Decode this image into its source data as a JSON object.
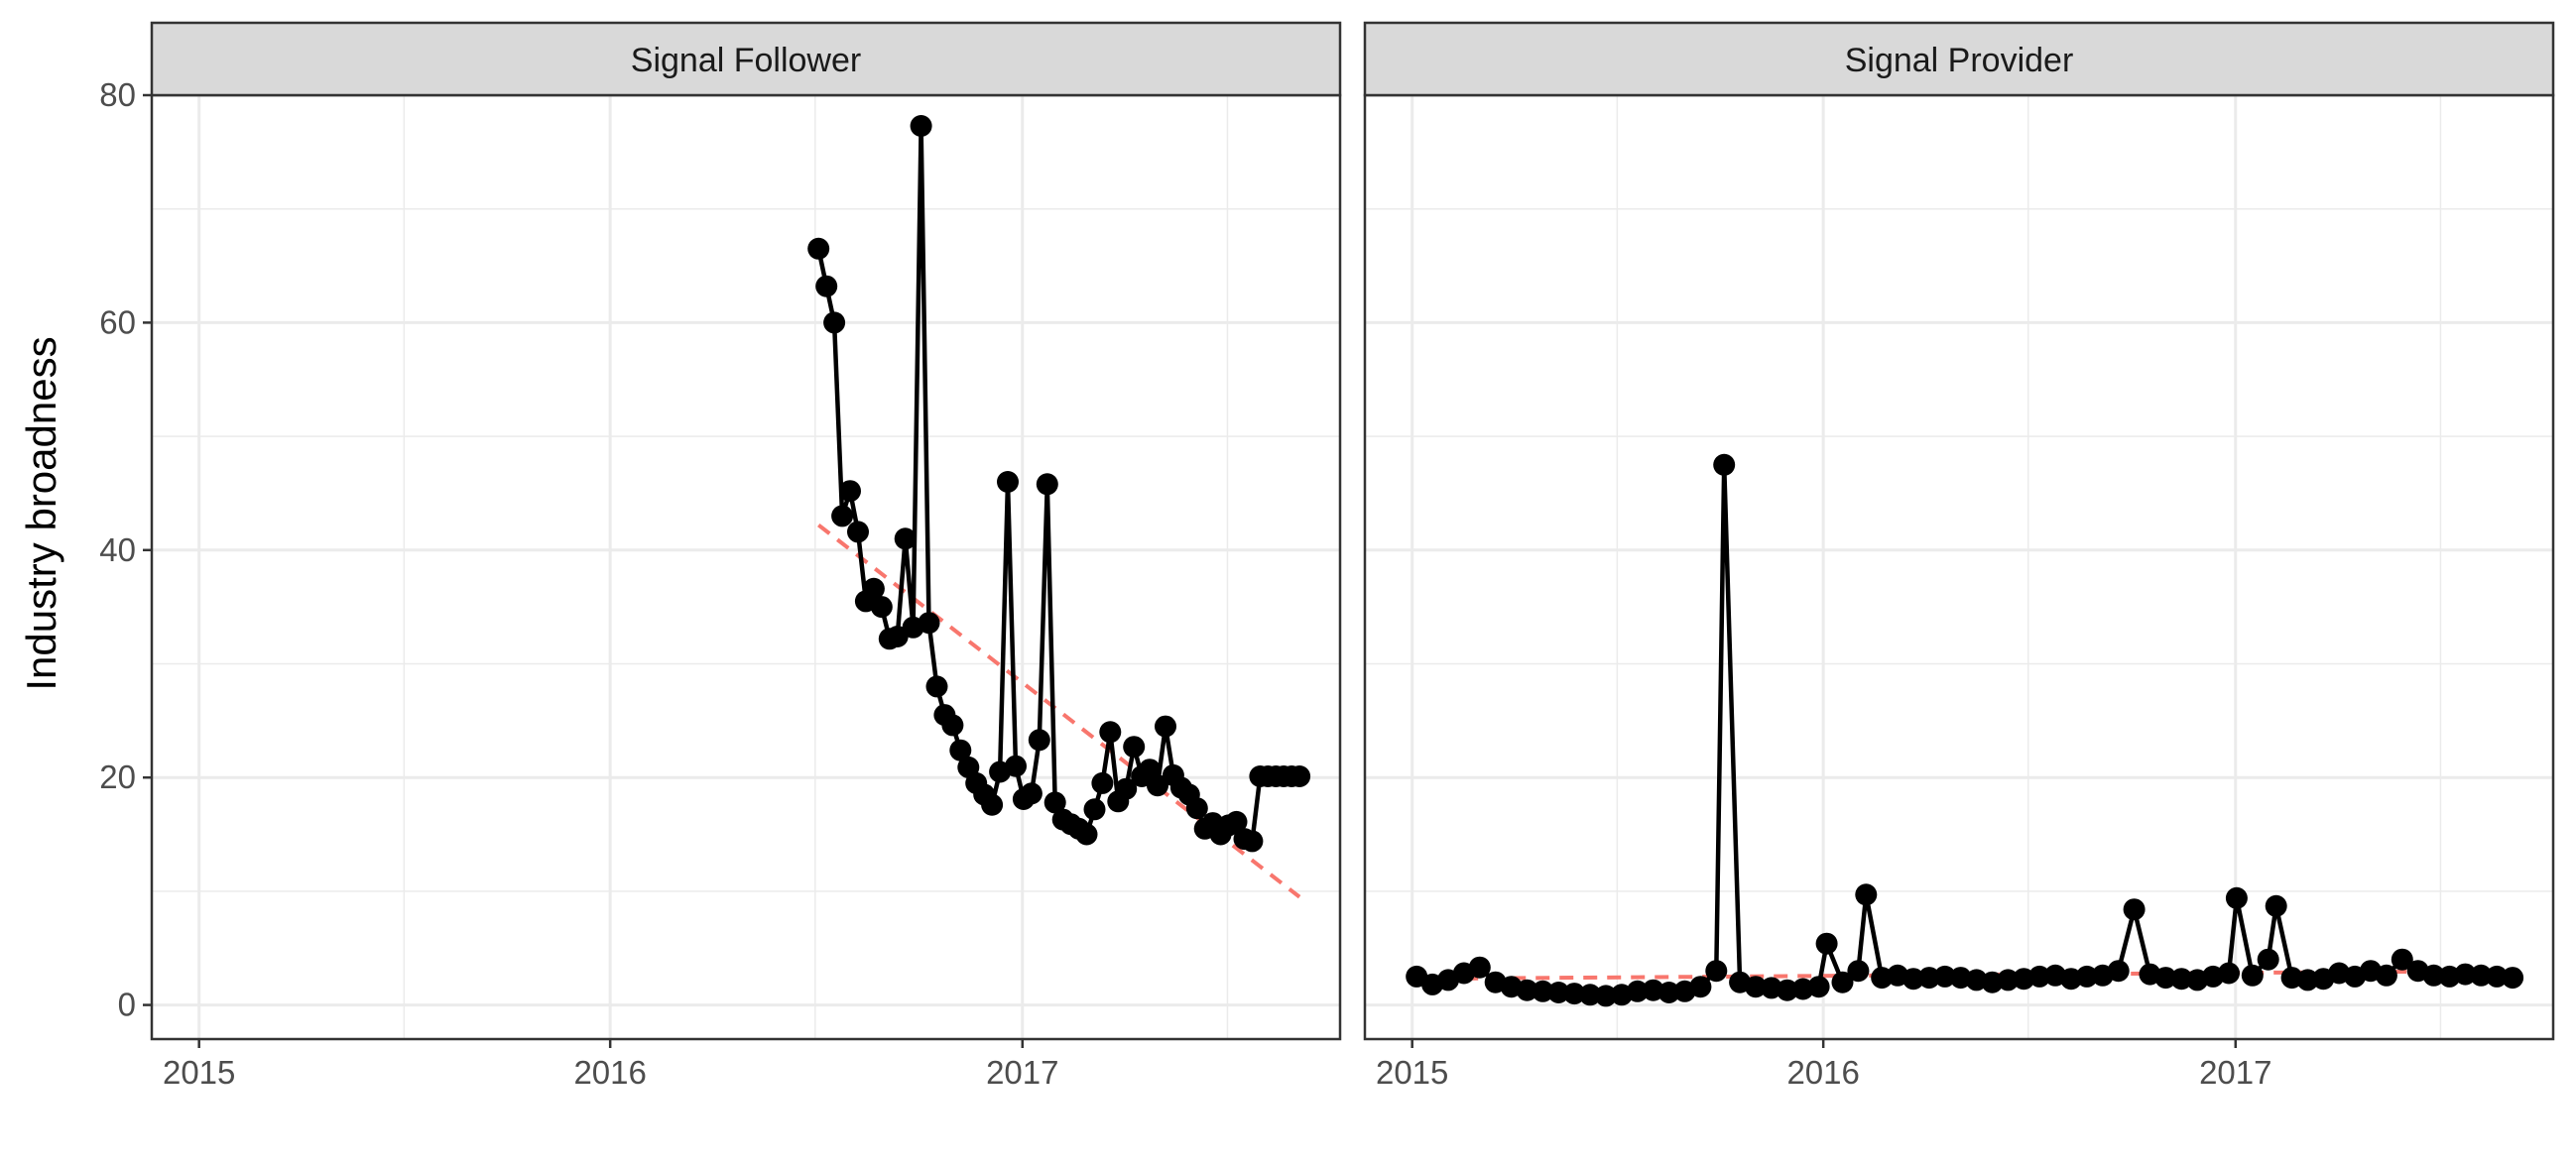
{
  "chart_data": {
    "type": "line",
    "ylabel": "Industry broadness",
    "xlabel": "",
    "ylim": [
      -3,
      80
    ],
    "yticks": [
      0,
      20,
      40,
      60,
      80
    ],
    "xlim": [
      "2014-11-20",
      "2017-10-10"
    ],
    "xticks": [
      "2015-01-01",
      "2016-01-01",
      "2017-01-01"
    ],
    "xtick_labels": [
      "2015",
      "2016",
      "2017"
    ],
    "grid": true,
    "colors": {
      "series": "#000000",
      "trend": "#f8766d",
      "strip_fill": "#d9d9d9",
      "grid": "#ebebeb"
    },
    "panels": [
      {
        "facet": "Signal Follower",
        "series": {
          "x": [
            "2016-07-04",
            "2016-07-11",
            "2016-07-18",
            "2016-07-25",
            "2016-08-01",
            "2016-08-08",
            "2016-08-15",
            "2016-08-22",
            "2016-08-29",
            "2016-09-05",
            "2016-09-12",
            "2016-09-19",
            "2016-09-26",
            "2016-10-03",
            "2016-10-10",
            "2016-10-17",
            "2016-10-24",
            "2016-10-31",
            "2016-11-07",
            "2016-11-14",
            "2016-11-21",
            "2016-11-28",
            "2016-12-05",
            "2016-12-12",
            "2016-12-19",
            "2016-12-26",
            "2017-01-02",
            "2017-01-09",
            "2017-01-16",
            "2017-01-23",
            "2017-01-30",
            "2017-02-06",
            "2017-02-13",
            "2017-02-20",
            "2017-02-27",
            "2017-03-06",
            "2017-03-13",
            "2017-03-20",
            "2017-03-27",
            "2017-04-03",
            "2017-04-10",
            "2017-04-17",
            "2017-04-24",
            "2017-05-01",
            "2017-05-08",
            "2017-05-15",
            "2017-05-22",
            "2017-05-29",
            "2017-06-05",
            "2017-06-12",
            "2017-06-19",
            "2017-06-26",
            "2017-07-03",
            "2017-07-10",
            "2017-07-17",
            "2017-07-24",
            "2017-07-31",
            "2017-08-07",
            "2017-08-14",
            "2017-08-21",
            "2017-08-28",
            "2017-09-04"
          ],
          "y": [
            66.5,
            63.2,
            60.0,
            43.0,
            45.2,
            41.6,
            35.5,
            36.6,
            35.0,
            32.2,
            32.4,
            41.0,
            33.2,
            77.3,
            33.6,
            28.0,
            25.5,
            24.6,
            22.4,
            20.9,
            19.5,
            18.5,
            17.6,
            20.5,
            46.0,
            21.0,
            18.1,
            18.6,
            23.3,
            45.8,
            17.8,
            16.3,
            15.9,
            15.5,
            15.0,
            17.2,
            19.5,
            24.0,
            17.9,
            19.0,
            22.7,
            20.1,
            20.7,
            19.3,
            24.5,
            20.2,
            19.1,
            18.5,
            17.3,
            15.5,
            16.0,
            15.0,
            15.8,
            16.1,
            14.6,
            14.4,
            20.1,
            20.1,
            20.1,
            20.1,
            20.1,
            20.1
          ]
        },
        "trend": {
          "x": [
            "2016-07-04",
            "2017-09-04"
          ],
          "y": [
            42.2,
            9.5
          ]
        }
      },
      {
        "facet": "Signal Provider",
        "series": {
          "x": [
            "2015-01-05",
            "2015-01-19",
            "2015-02-02",
            "2015-02-16",
            "2015-03-02",
            "2015-03-16",
            "2015-03-30",
            "2015-04-13",
            "2015-04-27",
            "2015-05-11",
            "2015-05-25",
            "2015-06-08",
            "2015-06-22",
            "2015-07-06",
            "2015-07-20",
            "2015-08-03",
            "2015-08-17",
            "2015-08-31",
            "2015-09-14",
            "2015-09-28",
            "2015-10-05",
            "2015-10-19",
            "2015-11-02",
            "2015-11-16",
            "2015-11-30",
            "2015-12-14",
            "2015-12-28",
            "2016-01-04",
            "2016-01-18",
            "2016-02-01",
            "2016-02-08",
            "2016-02-22",
            "2016-03-07",
            "2016-03-21",
            "2016-04-04",
            "2016-04-18",
            "2016-05-02",
            "2016-05-16",
            "2016-05-30",
            "2016-06-13",
            "2016-06-27",
            "2016-07-11",
            "2016-07-25",
            "2016-08-08",
            "2016-08-22",
            "2016-09-05",
            "2016-09-19",
            "2016-10-03",
            "2016-10-17",
            "2016-10-31",
            "2016-11-14",
            "2016-11-28",
            "2016-12-12",
            "2016-12-26",
            "2017-01-02",
            "2017-01-16",
            "2017-01-30",
            "2017-02-06",
            "2017-02-20",
            "2017-03-06",
            "2017-03-20",
            "2017-04-03",
            "2017-04-17",
            "2017-05-01",
            "2017-05-15",
            "2017-05-29",
            "2017-06-12",
            "2017-06-26",
            "2017-07-10",
            "2017-07-24",
            "2017-08-07",
            "2017-08-21",
            "2017-09-04"
          ],
          "y": [
            2.5,
            1.8,
            2.2,
            2.8,
            3.3,
            2.0,
            1.6,
            1.3,
            1.2,
            1.1,
            1.0,
            0.9,
            0.8,
            0.9,
            1.2,
            1.3,
            1.1,
            1.2,
            1.6,
            3.0,
            47.5,
            2.0,
            1.6,
            1.5,
            1.3,
            1.4,
            1.6,
            5.4,
            2.0,
            3.0,
            9.7,
            2.4,
            2.6,
            2.3,
            2.4,
            2.5,
            2.4,
            2.2,
            2.0,
            2.2,
            2.3,
            2.5,
            2.6,
            2.3,
            2.5,
            2.6,
            3.0,
            8.4,
            2.7,
            2.4,
            2.3,
            2.2,
            2.5,
            2.8,
            9.4,
            2.6,
            4.0,
            8.7,
            2.4,
            2.2,
            2.3,
            2.8,
            2.5,
            3.0,
            2.6,
            4.0,
            3.0,
            2.6,
            2.5,
            2.7,
            2.6,
            2.5,
            2.4
          ]
        },
        "trend": {
          "x": [
            "2015-01-05",
            "2017-09-04"
          ],
          "y": [
            2.3,
            3.0
          ]
        }
      }
    ]
  }
}
